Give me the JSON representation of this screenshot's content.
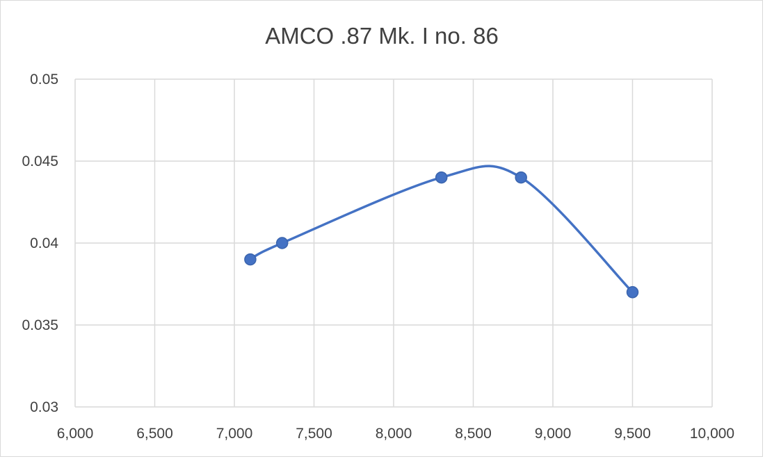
{
  "chart_data": {
    "type": "scatter",
    "title": "AMCO .87 Mk. I no. 86",
    "xlabel": "",
    "ylabel": "",
    "xlim": [
      6000,
      10000
    ],
    "ylim": [
      0.03,
      0.05
    ],
    "x_ticks": [
      "6,000",
      "6,500",
      "7,000",
      "7,500",
      "8,000",
      "8,500",
      "9,000",
      "9,500",
      "10,000"
    ],
    "y_ticks": [
      "0.03",
      "0.035",
      "0.04",
      "0.045",
      "0.05"
    ],
    "grid": true,
    "line_style": "smoothed",
    "series": [
      {
        "color": "#4472c4",
        "x": [
          7100,
          7300,
          8300,
          8800,
          9500
        ],
        "y": [
          0.039,
          0.04,
          0.044,
          0.044,
          0.037
        ]
      }
    ]
  }
}
